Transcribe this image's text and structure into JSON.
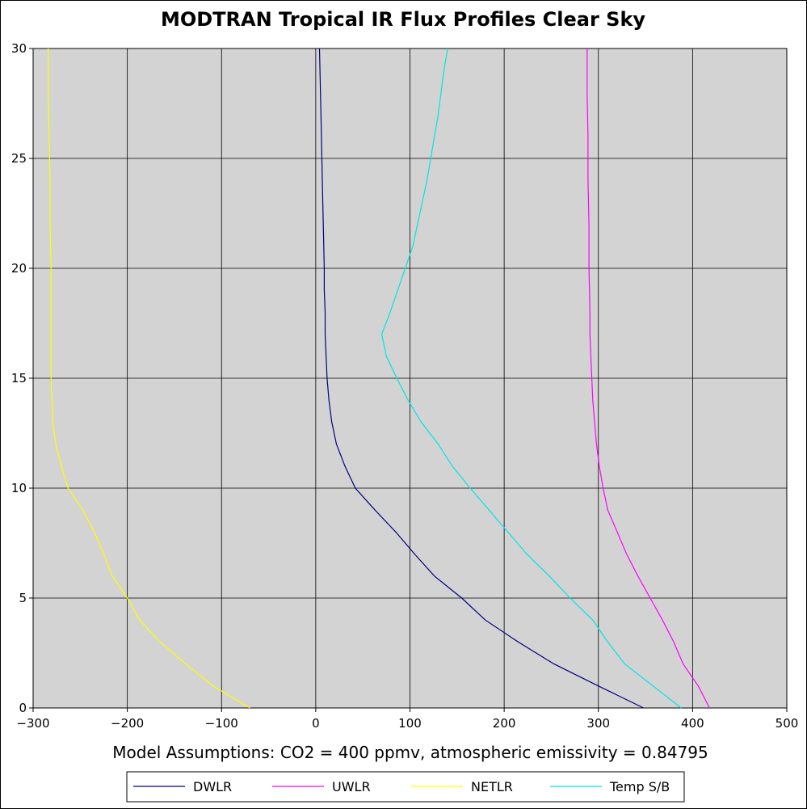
{
  "chart_data": {
    "type": "line",
    "title": "MODTRAN Tropical IR Flux Profiles Clear Sky",
    "caption": "Model Assumptions: CO2 = 400 ppmv, atmospheric emissivity = 0.84795",
    "xlim": [
      -300,
      500
    ],
    "ylim": [
      0,
      30
    ],
    "x_ticks": [
      "−300",
      "−200",
      "−100",
      "0",
      "100",
      "200",
      "300",
      "400",
      "500"
    ],
    "x_tick_values": [
      -300,
      -200,
      -100,
      0,
      100,
      200,
      300,
      400,
      500
    ],
    "y_ticks": [
      "0",
      "5",
      "10",
      "15",
      "20",
      "25",
      "30"
    ],
    "y_tick_values": [
      0,
      5,
      10,
      15,
      20,
      25,
      30
    ],
    "grid": true,
    "legend_position": "bottom",
    "plot_background": "#d3d3d3",
    "series": [
      {
        "name": "DWLR",
        "color": "#000080",
        "points": [
          [
            348,
            0
          ],
          [
            300,
            1
          ],
          [
            253,
            2
          ],
          [
            215,
            3
          ],
          [
            180,
            4
          ],
          [
            155,
            5
          ],
          [
            126,
            6
          ],
          [
            105,
            7
          ],
          [
            85,
            8
          ],
          [
            63,
            9
          ],
          [
            42,
            10
          ],
          [
            31,
            11
          ],
          [
            22,
            12
          ],
          [
            17,
            13
          ],
          [
            14,
            14
          ],
          [
            12,
            15
          ],
          [
            11,
            16
          ],
          [
            10,
            17
          ],
          [
            10,
            18
          ],
          [
            9,
            19
          ],
          [
            9,
            20
          ],
          [
            8,
            22
          ],
          [
            7,
            24
          ],
          [
            6,
            26
          ],
          [
            5,
            28
          ],
          [
            4,
            30
          ]
        ]
      },
      {
        "name": "UWLR",
        "color": "#ff00ff",
        "points": [
          [
            418,
            0
          ],
          [
            406,
            1
          ],
          [
            390,
            2
          ],
          [
            380,
            3
          ],
          [
            368,
            4
          ],
          [
            355,
            5
          ],
          [
            342,
            6
          ],
          [
            330,
            7
          ],
          [
            320,
            8
          ],
          [
            310,
            9
          ],
          [
            305,
            10
          ],
          [
            301,
            11
          ],
          [
            298,
            12
          ],
          [
            296,
            13
          ],
          [
            294,
            14
          ],
          [
            293,
            15
          ],
          [
            292,
            16
          ],
          [
            291,
            17
          ],
          [
            291,
            18
          ],
          [
            290,
            20
          ],
          [
            290,
            22
          ],
          [
            289,
            24
          ],
          [
            289,
            26
          ],
          [
            288,
            28
          ],
          [
            288,
            30
          ]
        ]
      },
      {
        "name": "NETLR",
        "color": "#ffff00",
        "points": [
          [
            -70,
            0
          ],
          [
            -109,
            1
          ],
          [
            -138,
            2
          ],
          [
            -165,
            3
          ],
          [
            -187,
            4
          ],
          [
            -200,
            5
          ],
          [
            -216,
            6
          ],
          [
            -225,
            7
          ],
          [
            -235,
            8
          ],
          [
            -247,
            9
          ],
          [
            -263,
            10
          ],
          [
            -270,
            11
          ],
          [
            -276,
            12
          ],
          [
            -279,
            13
          ],
          [
            -280,
            14
          ],
          [
            -281,
            15
          ],
          [
            -281,
            16
          ],
          [
            -281,
            17
          ],
          [
            -281,
            18
          ],
          [
            -281,
            20
          ],
          [
            -282,
            22
          ],
          [
            -282,
            24
          ],
          [
            -283,
            26
          ],
          [
            -284,
            28
          ],
          [
            -284,
            30
          ]
        ]
      },
      {
        "name": "Temp S/B",
        "color": "#00e5e5",
        "points": [
          [
            388,
            0
          ],
          [
            328,
            2
          ],
          [
            310,
            3
          ],
          [
            294,
            4
          ],
          [
            270,
            5
          ],
          [
            248,
            6
          ],
          [
            224,
            7
          ],
          [
            204,
            8
          ],
          [
            184,
            9
          ],
          [
            164,
            10
          ],
          [
            145,
            11
          ],
          [
            130,
            12
          ],
          [
            112,
            13
          ],
          [
            98,
            14
          ],
          [
            86,
            15
          ],
          [
            75,
            16
          ],
          [
            70,
            17
          ],
          [
            79,
            18
          ],
          [
            87,
            19
          ],
          [
            95,
            20
          ],
          [
            103,
            21
          ],
          [
            108,
            22
          ],
          [
            113,
            23
          ],
          [
            118,
            24
          ],
          [
            122,
            25
          ],
          [
            126,
            26
          ],
          [
            130,
            27
          ],
          [
            133,
            28
          ],
          [
            136,
            29
          ],
          [
            140,
            30
          ]
        ]
      }
    ]
  }
}
